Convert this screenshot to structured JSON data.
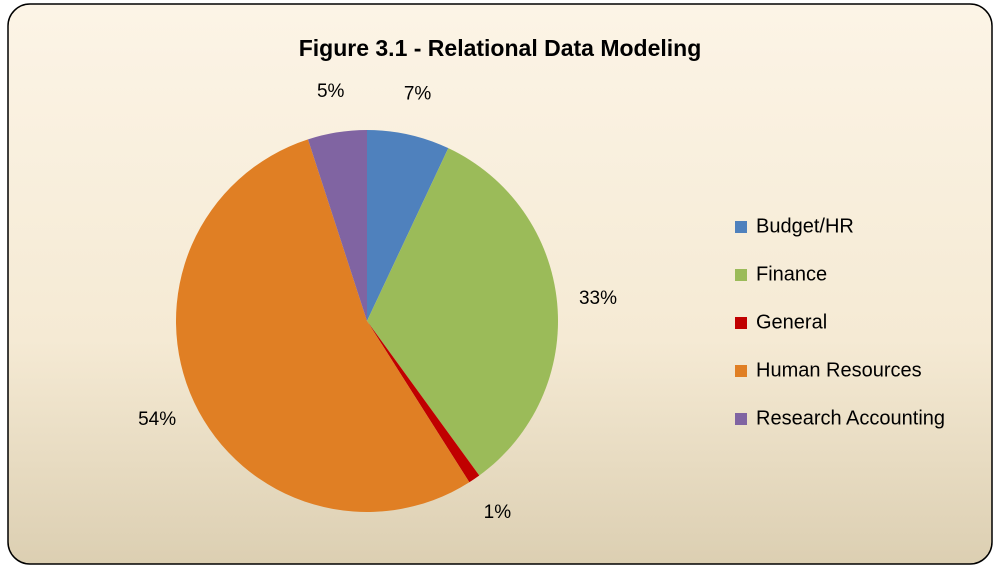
{
  "chart_data": {
    "type": "pie",
    "title": "Figure 3.1 - Relational Data Modeling",
    "categories": [
      "Budget/HR",
      "Finance",
      "General",
      "Human Resources",
      "Research Accounting"
    ],
    "values": [
      7,
      33,
      1,
      54,
      5
    ],
    "value_labels": [
      "7%",
      "33%",
      "1%",
      "54%",
      "5%"
    ],
    "colors": [
      "#4f81bd",
      "#9bbb59",
      "#c00000",
      "#e07f24",
      "#8064a2"
    ],
    "legend": "right"
  }
}
